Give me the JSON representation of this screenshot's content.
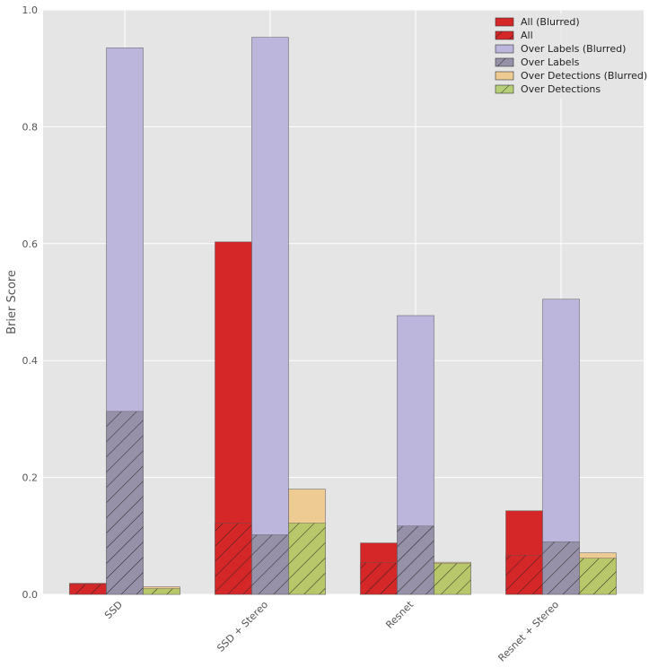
{
  "chart_data": {
    "type": "bar",
    "title": "",
    "xlabel": "",
    "ylabel": "Brier Score",
    "ylim": [
      0,
      1.0
    ],
    "yticks": [
      "0.0",
      "0.2",
      "0.4",
      "0.6",
      "0.8",
      "1.0"
    ],
    "ytick_values": [
      0,
      0.2,
      0.4,
      0.6,
      0.8,
      1.0
    ],
    "grid": true,
    "legend_position": "top-right",
    "categories": [
      "SSD",
      "SSD + Stereo",
      "Resnet",
      "Resnet + Stereo"
    ],
    "series": [
      {
        "name": "All (Blurred)",
        "group": 0,
        "style": "solid",
        "color": "#d62728",
        "values": [
          0.019,
          0.603,
          0.088,
          0.143
        ]
      },
      {
        "name": "All",
        "group": 0,
        "style": "hatched",
        "color": "#d62728",
        "values": [
          0.017,
          0.122,
          0.054,
          0.067
        ]
      },
      {
        "name": "Over Labels (Blurred)",
        "group": 1,
        "style": "solid",
        "color": "#bcb5dc",
        "values": [
          0.935,
          0.953,
          0.477,
          0.505
        ]
      },
      {
        "name": "Over Labels",
        "group": 1,
        "style": "hatched",
        "color": "#9691a8",
        "values": [
          0.313,
          0.102,
          0.117,
          0.09
        ]
      },
      {
        "name": "Over Detections (Blurred)",
        "group": 2,
        "style": "solid",
        "color": "#efcb94",
        "values": [
          0.013,
          0.18,
          0.055,
          0.071
        ]
      },
      {
        "name": "Over Detections",
        "group": 2,
        "style": "hatched",
        "color": "#b8c76a",
        "legend_color": "#b5cf76",
        "values": [
          0.01,
          0.122,
          0.053,
          0.062
        ]
      }
    ]
  }
}
